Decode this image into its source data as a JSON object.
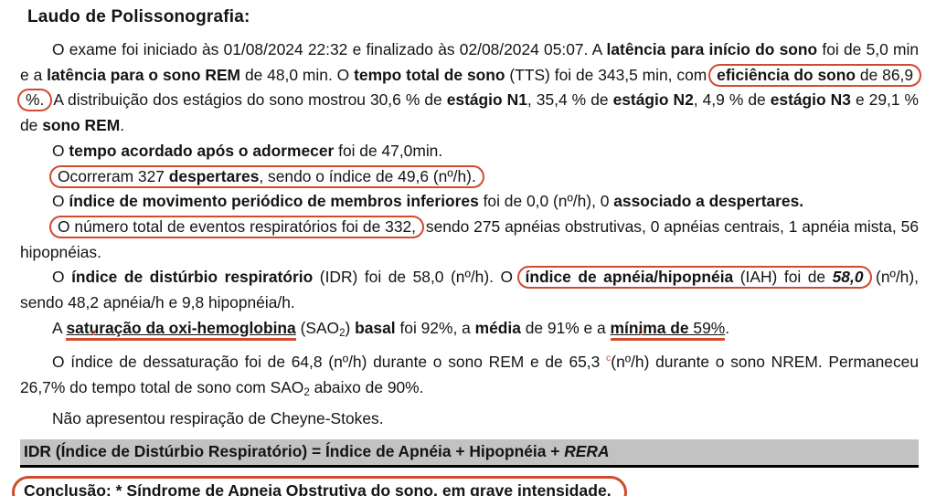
{
  "colors": {
    "red": "#d14a2f",
    "bar_bg": "#c2c2c2"
  },
  "doc": {
    "title": "Laudo de Polissonografia:",
    "p1": {
      "s0": "O exame foi iniciado às 01/08/2024 22:32 e finalizado às 02/08/2024 05:07. A ",
      "s1": "latência para início do sono",
      "s2": " foi de 5,0 min e a ",
      "s3": "latência para o sono REM",
      "s4": " de 48,0 min. O ",
      "s5": "tempo total de sono",
      "s6": " (TTS) foi de 343,5 min, com ",
      "s7": "eficiência do sono",
      "s8": " de 86,9 %.",
      "s9": " A distribuição dos estágios do sono mostrou 30,6 % de ",
      "s10": "estágio N1",
      "s11": ", 35,4 % de ",
      "s12": "estágio N2",
      "s13": ", 4,9 % de ",
      "s14": "estágio N3",
      "s15": " e 29,1 % de ",
      "s16": "sono REM",
      "s17": "."
    },
    "p2": {
      "s0": "O ",
      "s1": "tempo acordado após o adormecer",
      "s2": " foi de 47,0min."
    },
    "p3": {
      "s0": "Ocorreram 327 ",
      "s1": "despertares",
      "s2": ", sendo o índice de 49,6 (nº/h)."
    },
    "p4": {
      "s0": "O ",
      "s1": "índice de movimento periódico de membros inferiores",
      "s2": " foi de 0,0 (nº/h), 0 ",
      "s3": "associado a despertares."
    },
    "p5": {
      "s0": "O número total de eventos respiratórios foi de 332,",
      "s1": " sendo 275 apnéias obstrutivas, 0 apnéias centrais, 1 apnéia mista, 56 hipopnéias."
    },
    "p6": {
      "s0": "O ",
      "s1": "índice de distúrbio respiratório",
      "s2": " (IDR) foi de 58,0 (nº/h). O ",
      "s3": "índice de apnéia/hipopnéia",
      "s4": " (IAH) foi de ",
      "s5": "58,0",
      "s6": " (nº/h), sendo 48,2 apnéia/h e 9,8 hipopnéia/h."
    },
    "p7": {
      "s0": "A ",
      "c1": "c",
      "s1": "saturação da oxi-hemoglobina",
      "s2": " (SAO",
      "sub": "2",
      "s3": ") ",
      "s4": "basal",
      "s5": " foi 92%, a ",
      "s6": "média",
      "s7": " de 91% e a ",
      "c2": "c",
      "s8": "mínima de",
      "s9": " 59%",
      "s10": "."
    },
    "p8": {
      "s0": "O índice de dessaturação foi de 64,8 (nº/h) durante o sono REM e de 65,3 ",
      "c1": "c",
      "s1": "(nº/h) durante o sono NREM. Permaneceu 26,7% do tempo total de sono com SAO",
      "sub": "2",
      "s2": " abaixo de 90%."
    },
    "p9": {
      "s0": "Não apresentou respiração de Cheyne-Stokes."
    },
    "idr_bar": {
      "s0": "IDR (Índice de Distúrbio Respiratório) = Índice de Apnéia + Hipopnéia + ",
      "s1": "RERA"
    },
    "conclusion": {
      "s0": "Conclusão: * Síndrome de Apneia Obstrutiva do sono, em grave intensidade."
    }
  }
}
